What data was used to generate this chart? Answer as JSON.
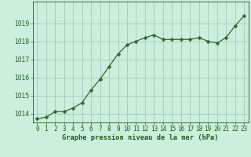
{
  "x": [
    0,
    1,
    2,
    3,
    4,
    5,
    6,
    7,
    8,
    9,
    10,
    11,
    12,
    13,
    14,
    15,
    16,
    17,
    18,
    19,
    20,
    21,
    22,
    23
  ],
  "y": [
    1013.7,
    1013.8,
    1014.1,
    1014.1,
    1014.3,
    1014.6,
    1015.3,
    1015.9,
    1016.6,
    1017.3,
    1017.8,
    1018.0,
    1018.2,
    1018.35,
    1018.1,
    1018.1,
    1018.1,
    1018.1,
    1018.2,
    1018.0,
    1017.9,
    1018.2,
    1018.85,
    1019.4
  ],
  "line_color": "#2d6a2d",
  "marker_color": "#2d6a2d",
  "bg_color": "#cceedd",
  "grid_color": "#aaccbb",
  "xlabel": "Graphe pression niveau de la mer (hPa)",
  "xlabel_color": "#1a5c1a",
  "tick_color": "#1a5c1a",
  "ylim": [
    1013.5,
    1020.2
  ],
  "yticks": [
    1014,
    1015,
    1016,
    1017,
    1018,
    1019
  ],
  "xlim": [
    -0.5,
    23.5
  ],
  "xticks": [
    0,
    1,
    2,
    3,
    4,
    5,
    6,
    7,
    8,
    9,
    10,
    11,
    12,
    13,
    14,
    15,
    16,
    17,
    18,
    19,
    20,
    21,
    22,
    23
  ],
  "tick_fontsize": 5.5,
  "xlabel_fontsize": 6.2,
  "linewidth": 0.9,
  "markersize": 2.5
}
